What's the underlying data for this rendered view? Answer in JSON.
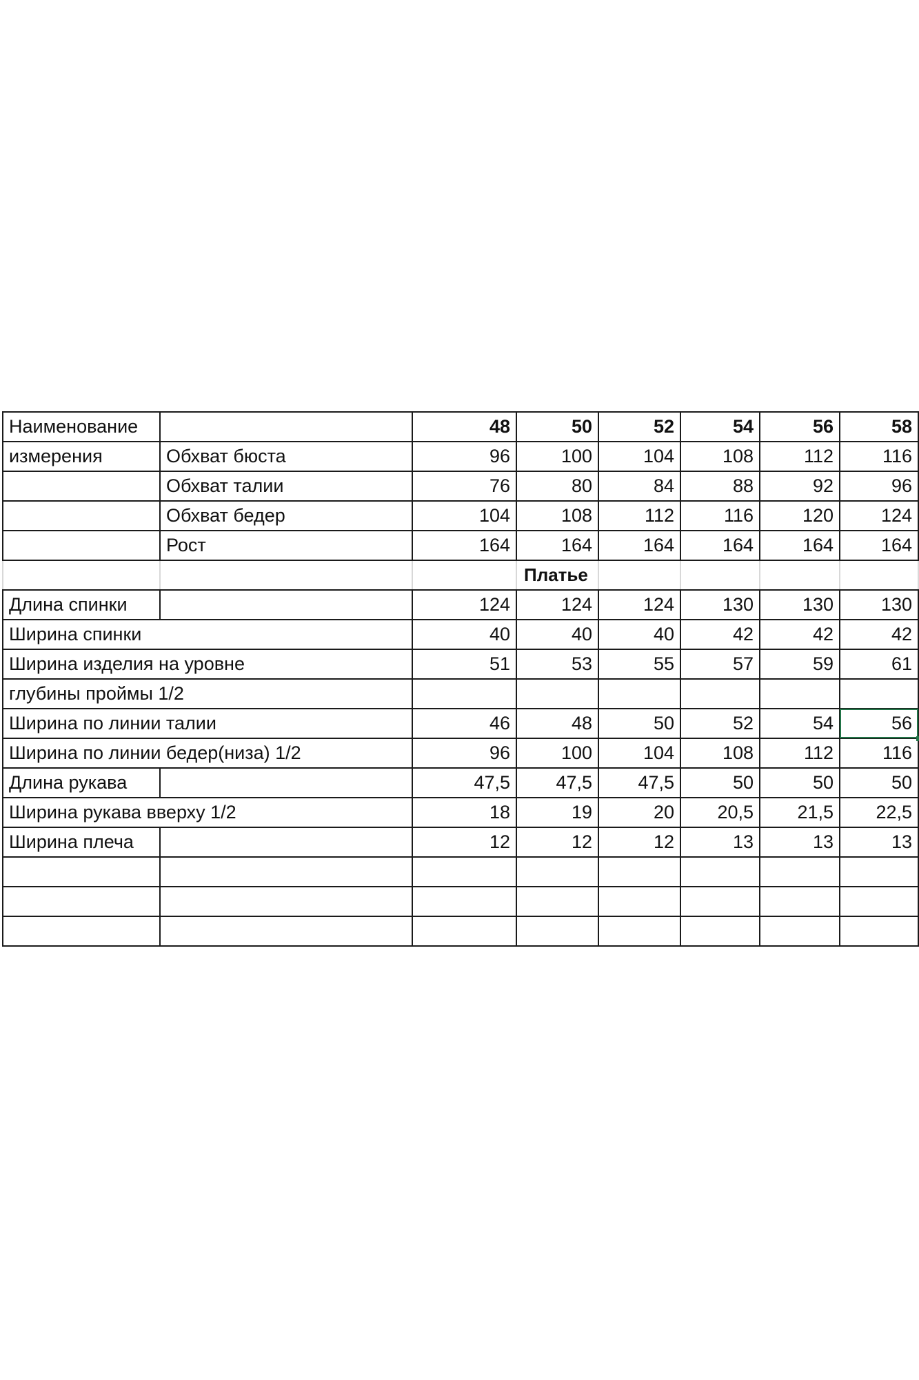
{
  "header": {
    "label_top": "Наименование",
    "label_bottom": "измерения",
    "sizes": [
      "48",
      "50",
      "52",
      "54",
      "56",
      "58"
    ]
  },
  "body_measurements": [
    {
      "label": "Обхват бюста",
      "values": [
        "96",
        "100",
        "104",
        "108",
        "112",
        "116"
      ]
    },
    {
      "label": "Обхват талии",
      "values": [
        "76",
        "80",
        "84",
        "88",
        "92",
        "96"
      ]
    },
    {
      "label": "Обхват бедер",
      "values": [
        "104",
        "108",
        "112",
        "116",
        "120",
        "124"
      ]
    },
    {
      "label": "Рост",
      "values": [
        "164",
        "164",
        "164",
        "164",
        "164",
        "164"
      ]
    }
  ],
  "section_title": "Платье",
  "garment_measurements": [
    {
      "label": "Длина спинки",
      "values": [
        "124",
        "124",
        "124",
        "130",
        "130",
        "130"
      ]
    },
    {
      "label": "Ширина спинки",
      "values": [
        "40",
        "40",
        "40",
        "42",
        "42",
        "42"
      ]
    },
    {
      "label": "Ширина изделия на уровне",
      "values": [
        "51",
        "53",
        "55",
        "57",
        "59",
        "61"
      ]
    },
    {
      "label": "глубины проймы 1/2",
      "values": [
        "",
        "",
        "",
        "",
        "",
        ""
      ]
    },
    {
      "label": "Ширина по линии талии",
      "values": [
        "46",
        "48",
        "50",
        "52",
        "54",
        "56"
      ]
    },
    {
      "label": "Ширина по линии бедер(низа) 1/2",
      "values": [
        "96",
        "100",
        "104",
        "108",
        "112",
        "116"
      ]
    },
    {
      "label": "Длина рукава",
      "values": [
        "47,5",
        "47,5",
        "47,5",
        "50",
        "50",
        "50"
      ]
    },
    {
      "label": "Ширина рукава вверху 1/2",
      "values": [
        "18",
        "19",
        "20",
        "20,5",
        "21,5",
        "22,5"
      ]
    },
    {
      "label": "Ширина плеча",
      "values": [
        "12",
        "12",
        "12",
        "13",
        "13",
        "13"
      ]
    }
  ],
  "selection_color": "#217346"
}
